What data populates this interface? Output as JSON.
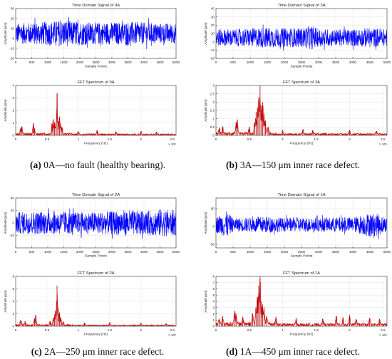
{
  "chart_data": [
    {
      "panel": "a",
      "type": "line",
      "title": "Time Domain Signal of 0A",
      "xlabel": "Sample Points",
      "ylabel": "Amplitude (μm)",
      "xlim": [
        0,
        5000
      ],
      "ylim": [
        -20,
        30
      ],
      "xticks": [
        0,
        500,
        1000,
        1500,
        2000,
        2500,
        3000,
        3500,
        4000,
        4500,
        5000
      ],
      "yticks": [
        -20,
        -10,
        0,
        10,
        20,
        30
      ],
      "series": [
        {
          "color": "#0000ff",
          "center": 5,
          "envelope": [
            [
              0,
              12
            ],
            [
              500,
              13
            ],
            [
              1000,
              14
            ],
            [
              1500,
              16
            ],
            [
              2000,
              14
            ],
            [
              2500,
              13
            ],
            [
              3000,
              13
            ],
            [
              3500,
              14
            ],
            [
              4000,
              13
            ],
            [
              4500,
              12
            ],
            [
              5000,
              12
            ]
          ]
        }
      ]
    },
    {
      "panel": "a",
      "type": "line",
      "title": "FFT Spectrum of 0A",
      "xlabel": "Frequency (Hz)",
      "ylabel": "Amplitude (μm)",
      "xlim": [
        0,
        2.56
      ],
      "ylim": [
        0,
        4
      ],
      "x_multiplier": "× 10⁴",
      "xticks": [
        0,
        0.5,
        1,
        1.5,
        2,
        2.5
      ],
      "yticks": [
        0,
        1,
        2,
        3,
        4
      ],
      "noise": 0.12,
      "peaks": [
        [
          0.08,
          0.55
        ],
        [
          0.1,
          0.6
        ],
        [
          0.28,
          0.95
        ],
        [
          0.3,
          0.45
        ],
        [
          0.58,
          0.9
        ],
        [
          0.6,
          1.3
        ],
        [
          0.62,
          1.0
        ],
        [
          0.64,
          0.9
        ],
        [
          0.66,
          3.4
        ],
        [
          0.68,
          1.1
        ],
        [
          0.7,
          1.5
        ],
        [
          0.72,
          0.9
        ],
        [
          0.74,
          0.6
        ],
        [
          1.0,
          0.3
        ],
        [
          1.3,
          0.35
        ],
        [
          1.6,
          0.3
        ],
        [
          2.0,
          0.25
        ],
        [
          2.25,
          0.25
        ]
      ],
      "color": "#cc0000"
    },
    {
      "panel": "b",
      "type": "line",
      "title": "Time Domain Signal of 3A",
      "xlabel": "Sample Points",
      "ylabel": "Amplitude (μm)",
      "xlim": [
        0,
        5000
      ],
      "ylim": [
        -20,
        40
      ],
      "xticks": [
        0,
        500,
        1000,
        1500,
        2000,
        2500,
        3000,
        3500,
        4000,
        4500,
        5000
      ],
      "yticks": [
        -20,
        -10,
        0,
        10,
        20,
        30,
        40
      ],
      "series": [
        {
          "color": "#0000ff",
          "center": 5,
          "envelope": [
            [
              0,
              12
            ],
            [
              500,
              12
            ],
            [
              1000,
              13
            ],
            [
              1500,
              15
            ],
            [
              2000,
              13
            ],
            [
              2500,
              14
            ],
            [
              2800,
              17
            ],
            [
              3000,
              13
            ],
            [
              3500,
              12
            ],
            [
              4000,
              12
            ],
            [
              4500,
              14
            ],
            [
              5000,
              12
            ]
          ]
        }
      ]
    },
    {
      "panel": "b",
      "type": "line",
      "title": "FFT Spectrum of 3A",
      "xlabel": "Frequency (Hz)",
      "ylabel": "Amplitude (μm)",
      "xlim": [
        0,
        2.56
      ],
      "ylim": [
        0,
        3
      ],
      "x_multiplier": "× 10⁴",
      "xticks": [
        0,
        0.5,
        1,
        1.5,
        2,
        2.5
      ],
      "yticks": [
        0,
        0.5,
        1,
        1.5,
        2,
        2.5,
        3
      ],
      "noise": 0.12,
      "peaks": [
        [
          0.05,
          0.4
        ],
        [
          0.1,
          0.5
        ],
        [
          0.3,
          0.8
        ],
        [
          0.32,
          0.95
        ],
        [
          0.5,
          0.4
        ],
        [
          0.58,
          0.8
        ],
        [
          0.6,
          1.4
        ],
        [
          0.62,
          1.6
        ],
        [
          0.64,
          2.3
        ],
        [
          0.66,
          3.0
        ],
        [
          0.68,
          1.8
        ],
        [
          0.7,
          2.0
        ],
        [
          0.72,
          1.3
        ],
        [
          0.74,
          0.9
        ],
        [
          0.78,
          0.5
        ],
        [
          1.0,
          0.25
        ],
        [
          1.3,
          0.3
        ],
        [
          1.45,
          0.25
        ],
        [
          2.0,
          0.3
        ],
        [
          2.4,
          0.25
        ]
      ],
      "color": "#cc0000"
    },
    {
      "panel": "c",
      "type": "line",
      "title": "Time Domain Signal of 2A",
      "xlabel": "Sample Points",
      "ylabel": "Amplitude (μm)",
      "xlim": [
        0,
        5000
      ],
      "ylim": [
        -40,
        40
      ],
      "xticks": [
        0,
        500,
        1000,
        1500,
        2000,
        2500,
        3000,
        3500,
        4000,
        4500,
        5000
      ],
      "yticks": [
        -20,
        0,
        20,
        40
      ],
      "series": [
        {
          "color": "#0000ff",
          "center": 0,
          "envelope": [
            [
              0,
              20
            ],
            [
              500,
              22
            ],
            [
              1000,
              21
            ],
            [
              1500,
              22
            ],
            [
              2000,
              20
            ],
            [
              2500,
              21
            ],
            [
              3000,
              22
            ],
            [
              3500,
              25
            ],
            [
              4000,
              22
            ],
            [
              4500,
              26
            ],
            [
              5000,
              24
            ]
          ]
        }
      ]
    },
    {
      "panel": "c",
      "type": "line",
      "title": "FFT Spectrum of 2A",
      "xlabel": "Frequency (Hz)",
      "ylabel": "Amplitude (μm)",
      "xlim": [
        0,
        2.56
      ],
      "ylim": [
        0,
        8
      ],
      "x_multiplier": "× 10⁴",
      "xticks": [
        0,
        0.5,
        1,
        1.5,
        2,
        2.5
      ],
      "yticks": [
        0,
        2,
        4,
        6,
        8
      ],
      "noise": 0.2,
      "peaks": [
        [
          0.08,
          1.0
        ],
        [
          0.15,
          0.8
        ],
        [
          0.3,
          1.1
        ],
        [
          0.32,
          1.8
        ],
        [
          0.55,
          0.8
        ],
        [
          0.6,
          1.4
        ],
        [
          0.62,
          1.9
        ],
        [
          0.64,
          2.5
        ],
        [
          0.66,
          6.5
        ],
        [
          0.68,
          3.0
        ],
        [
          0.7,
          2.0
        ],
        [
          0.72,
          1.2
        ],
        [
          0.76,
          0.7
        ],
        [
          1.1,
          0.5
        ],
        [
          1.5,
          0.5
        ],
        [
          2.0,
          0.45
        ],
        [
          2.4,
          0.4
        ]
      ],
      "color": "#cc0000"
    },
    {
      "panel": "d",
      "type": "line",
      "title": "Time Domain Signal of 1A",
      "xlabel": "Sample Points",
      "ylabel": "Amplitude (μm)",
      "xlim": [
        0,
        5000
      ],
      "ylim": [
        -60,
        80
      ],
      "xticks": [
        0,
        500,
        1000,
        1500,
        2000,
        2500,
        3000,
        3500,
        4000,
        4500,
        5000
      ],
      "yticks": [
        -50,
        0,
        50
      ],
      "series": [
        {
          "color": "#0000ff",
          "center": 5,
          "envelope": [
            [
              0,
              25
            ],
            [
              300,
              45
            ],
            [
              500,
              22
            ],
            [
              1000,
              24
            ],
            [
              1500,
              28
            ],
            [
              2000,
              22
            ],
            [
              2500,
              24
            ],
            [
              3000,
              22
            ],
            [
              3500,
              25
            ],
            [
              4000,
              24
            ],
            [
              4500,
              40
            ],
            [
              4800,
              35
            ],
            [
              5000,
              22
            ]
          ]
        }
      ]
    },
    {
      "panel": "d",
      "type": "line",
      "title": "FFT Spectrum of 1A",
      "xlabel": "Frequency (Hz)",
      "ylabel": "Amplitude (μm)",
      "xlim": [
        0,
        2.56
      ],
      "ylim": [
        0,
        8
      ],
      "x_multiplier": "× 10⁴",
      "xticks": [
        0,
        0.5,
        1,
        1.5,
        2,
        2.5
      ],
      "yticks": [
        0,
        1,
        2,
        3,
        4,
        5,
        6,
        7,
        8
      ],
      "noise": 0.45,
      "peaks": [
        [
          0.05,
          1.0
        ],
        [
          0.1,
          1.2
        ],
        [
          0.28,
          2.4
        ],
        [
          0.3,
          1.8
        ],
        [
          0.4,
          1.2
        ],
        [
          0.55,
          2.0
        ],
        [
          0.6,
          3.0
        ],
        [
          0.62,
          4.5
        ],
        [
          0.64,
          6.5
        ],
        [
          0.66,
          8.0
        ],
        [
          0.68,
          4.0
        ],
        [
          0.7,
          3.5
        ],
        [
          0.72,
          2.5
        ],
        [
          0.76,
          1.6
        ],
        [
          0.9,
          1.2
        ],
        [
          1.2,
          1.0
        ],
        [
          1.6,
          1.2
        ],
        [
          1.8,
          1.6
        ],
        [
          1.9,
          1.3
        ],
        [
          2.0,
          1.5
        ],
        [
          2.1,
          1.1
        ],
        [
          2.3,
          1.2
        ],
        [
          2.45,
          0.9
        ]
      ],
      "color": "#cc0000"
    }
  ],
  "captions": [
    {
      "letter": "(a)",
      "text": " 0A—no fault (healthy bearing)."
    },
    {
      "letter": "(b)",
      "text": " 3A—150 μm inner race defect."
    },
    {
      "letter": "(c)",
      "text": " 2A—250 μm inner race defect."
    },
    {
      "letter": "(d)",
      "text": " 1A—450 μm inner race defect."
    }
  ]
}
